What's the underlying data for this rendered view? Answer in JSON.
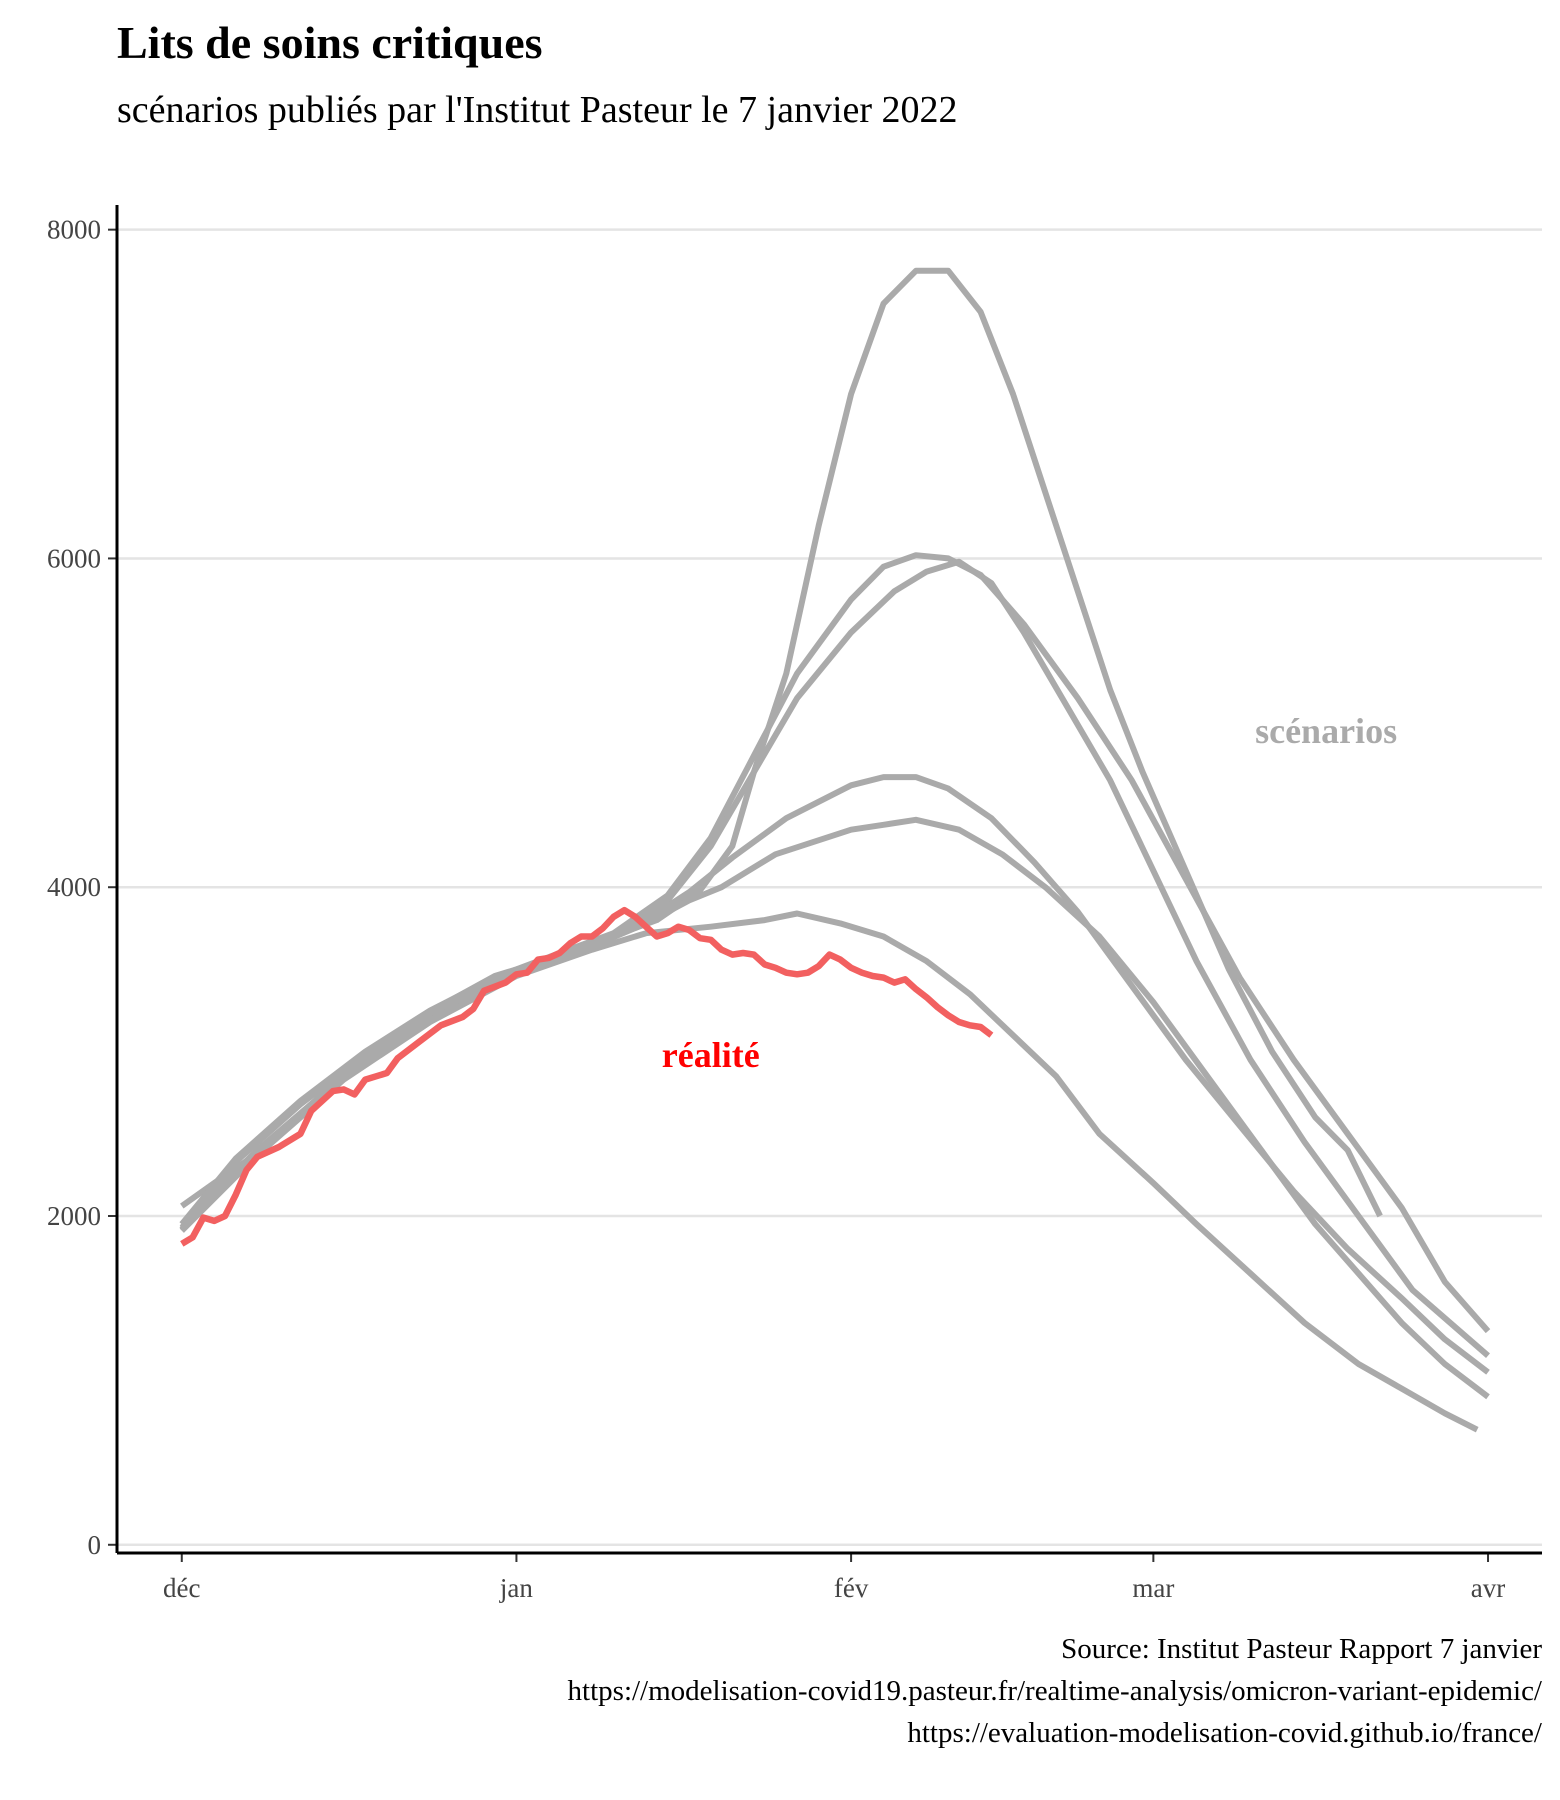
{
  "title": "Lits de soins critiques",
  "subtitle": "scénarios publiés par l'Institut Pasteur le 7 janvier 2022",
  "caption": [
    "Source: Institut Pasteur Rapport 7 janvier",
    "https://modelisation-covid19.pasteur.fr/realtime-analysis/omicron-variant-epidemic/",
    "https://evaluation-modelisation-covid.github.io/france/"
  ],
  "colors": {
    "scenario": "#aaaaaa",
    "reality": "#f26060",
    "reality_label": "#ff0000",
    "scenario_label": "#aaaaaa",
    "grid": "#e4e4e4"
  },
  "chart_data": {
    "type": "line",
    "title": "Lits de soins critiques",
    "subtitle": "scénarios publiés par l'Institut Pasteur le 7 janvier 2022",
    "xlabel": "",
    "ylabel": "",
    "x_ticks": [
      {
        "label": "déc",
        "date": "2021-12-01"
      },
      {
        "label": "jan",
        "date": "2022-01-01"
      },
      {
        "label": "fév",
        "date": "2022-02-01"
      },
      {
        "label": "mar",
        "date": "2022-03-01"
      },
      {
        "label": "avr",
        "date": "2022-04-01"
      }
    ],
    "xlim": [
      "2021-11-25",
      "2022-04-06"
    ],
    "y_ticks": [
      0,
      2000,
      4000,
      6000,
      8000
    ],
    "ylim": [
      -50,
      8150
    ],
    "grid": "horizontal",
    "annotations": [
      {
        "text": "scénarios",
        "date": "2022-03-17",
        "value": 4950,
        "color_key": "scenario_label"
      },
      {
        "text": "réalité",
        "date": "2022-01-19",
        "value": 2980,
        "color_key": "reality_label"
      }
    ],
    "series": [
      {
        "kind": "scenario",
        "points": [
          [
            "2021-12-01",
            2060
          ],
          [
            "2021-12-04",
            2200
          ],
          [
            "2021-12-08",
            2380
          ],
          [
            "2021-12-12",
            2620
          ],
          [
            "2021-12-16",
            2860
          ],
          [
            "2021-12-20",
            3060
          ],
          [
            "2021-12-25",
            3280
          ],
          [
            "2021-12-30",
            3460
          ],
          [
            "2022-01-04",
            3560
          ],
          [
            "2022-01-09",
            3680
          ],
          [
            "2022-01-14",
            3800
          ],
          [
            "2022-01-18",
            3980
          ],
          [
            "2022-01-21",
            4250
          ],
          [
            "2022-01-23",
            4700
          ],
          [
            "2022-01-26",
            5300
          ],
          [
            "2022-01-29",
            6200
          ],
          [
            "2022-02-01",
            7000
          ],
          [
            "2022-02-04",
            7550
          ],
          [
            "2022-02-07",
            7750
          ],
          [
            "2022-02-10",
            7750
          ],
          [
            "2022-02-13",
            7500
          ],
          [
            "2022-02-16",
            7000
          ],
          [
            "2022-02-19",
            6400
          ],
          [
            "2022-02-22",
            5800
          ],
          [
            "2022-02-25",
            5200
          ],
          [
            "2022-02-28",
            4700
          ],
          [
            "2022-03-04",
            4100
          ],
          [
            "2022-03-08",
            3500
          ],
          [
            "2022-03-12",
            3000
          ],
          [
            "2022-03-16",
            2600
          ],
          [
            "2022-03-19",
            2400
          ],
          [
            "2022-03-22",
            2000
          ]
        ]
      },
      {
        "kind": "scenario",
        "points": [
          [
            "2021-12-01",
            1950
          ],
          [
            "2021-12-06",
            2350
          ],
          [
            "2021-12-12",
            2700
          ],
          [
            "2021-12-18",
            3000
          ],
          [
            "2021-12-24",
            3250
          ],
          [
            "2021-12-30",
            3450
          ],
          [
            "2022-01-05",
            3600
          ],
          [
            "2022-01-10",
            3720
          ],
          [
            "2022-01-15",
            3950
          ],
          [
            "2022-01-19",
            4300
          ],
          [
            "2022-01-23",
            4800
          ],
          [
            "2022-01-27",
            5300
          ],
          [
            "2022-02-01",
            5750
          ],
          [
            "2022-02-04",
            5950
          ],
          [
            "2022-02-07",
            6020
          ],
          [
            "2022-02-10",
            6000
          ],
          [
            "2022-02-13",
            5900
          ],
          [
            "2022-02-17",
            5600
          ],
          [
            "2022-02-22",
            5150
          ],
          [
            "2022-02-27",
            4650
          ],
          [
            "2022-03-04",
            4050
          ],
          [
            "2022-03-09",
            3450
          ],
          [
            "2022-03-14",
            2950
          ],
          [
            "2022-03-19",
            2500
          ],
          [
            "2022-03-24",
            2050
          ],
          [
            "2022-03-28",
            1600
          ],
          [
            "2022-04-01",
            1300
          ]
        ]
      },
      {
        "kind": "scenario",
        "points": [
          [
            "2021-12-01",
            1920
          ],
          [
            "2021-12-06",
            2330
          ],
          [
            "2021-12-12",
            2680
          ],
          [
            "2021-12-18",
            2980
          ],
          [
            "2021-12-24",
            3230
          ],
          [
            "2021-12-30",
            3440
          ],
          [
            "2022-01-05",
            3590
          ],
          [
            "2022-01-10",
            3710
          ],
          [
            "2022-01-15",
            3920
          ],
          [
            "2022-01-19",
            4250
          ],
          [
            "2022-01-23",
            4700
          ],
          [
            "2022-01-27",
            5150
          ],
          [
            "2022-02-01",
            5550
          ],
          [
            "2022-02-05",
            5800
          ],
          [
            "2022-02-08",
            5920
          ],
          [
            "2022-02-11",
            5980
          ],
          [
            "2022-02-14",
            5850
          ],
          [
            "2022-02-17",
            5550
          ],
          [
            "2022-02-21",
            5100
          ],
          [
            "2022-02-25",
            4650
          ],
          [
            "2022-03-01",
            4100
          ],
          [
            "2022-03-05",
            3550
          ],
          [
            "2022-03-10",
            2950
          ],
          [
            "2022-03-15",
            2450
          ],
          [
            "2022-03-20",
            2000
          ],
          [
            "2022-03-25",
            1550
          ],
          [
            "2022-04-01",
            1150
          ]
        ]
      },
      {
        "kind": "scenario",
        "points": [
          [
            "2021-12-01",
            1950
          ],
          [
            "2021-12-08",
            2400
          ],
          [
            "2021-12-16",
            2850
          ],
          [
            "2021-12-24",
            3200
          ],
          [
            "2022-01-01",
            3480
          ],
          [
            "2022-01-08",
            3650
          ],
          [
            "2022-01-13",
            3800
          ],
          [
            "2022-01-17",
            3970
          ],
          [
            "2022-01-21",
            4180
          ],
          [
            "2022-01-26",
            4420
          ],
          [
            "2022-02-01",
            4620
          ],
          [
            "2022-02-04",
            4670
          ],
          [
            "2022-02-07",
            4670
          ],
          [
            "2022-02-10",
            4600
          ],
          [
            "2022-02-14",
            4420
          ],
          [
            "2022-02-18",
            4150
          ],
          [
            "2022-02-22",
            3850
          ],
          [
            "2022-02-27",
            3400
          ],
          [
            "2022-03-04",
            2950
          ],
          [
            "2022-03-09",
            2550
          ],
          [
            "2022-03-14",
            2150
          ],
          [
            "2022-03-19",
            1800
          ],
          [
            "2022-03-24",
            1500
          ],
          [
            "2022-03-28",
            1250
          ],
          [
            "2022-04-01",
            1050
          ]
        ]
      },
      {
        "kind": "scenario",
        "points": [
          [
            "2021-12-01",
            1930
          ],
          [
            "2021-12-08",
            2390
          ],
          [
            "2021-12-16",
            2840
          ],
          [
            "2021-12-24",
            3190
          ],
          [
            "2022-01-01",
            3470
          ],
          [
            "2022-01-08",
            3640
          ],
          [
            "2022-01-13",
            3780
          ],
          [
            "2022-01-17",
            3920
          ],
          [
            "2022-01-20",
            4000
          ],
          [
            "2022-01-25",
            4200
          ],
          [
            "2022-02-01",
            4350
          ],
          [
            "2022-02-04",
            4380
          ],
          [
            "2022-02-07",
            4410
          ],
          [
            "2022-02-11",
            4350
          ],
          [
            "2022-02-15",
            4200
          ],
          [
            "2022-02-19",
            4000
          ],
          [
            "2022-02-24",
            3700
          ],
          [
            "2022-03-01",
            3300
          ],
          [
            "2022-03-06",
            2850
          ],
          [
            "2022-03-11",
            2400
          ],
          [
            "2022-03-16",
            1950
          ],
          [
            "2022-03-20",
            1650
          ],
          [
            "2022-03-24",
            1350
          ],
          [
            "2022-03-28",
            1100
          ],
          [
            "2022-04-01",
            900
          ]
        ]
      },
      {
        "kind": "scenario",
        "points": [
          [
            "2021-12-01",
            1910
          ],
          [
            "2021-12-08",
            2370
          ],
          [
            "2021-12-16",
            2830
          ],
          [
            "2021-12-24",
            3180
          ],
          [
            "2022-01-01",
            3460
          ],
          [
            "2022-01-08",
            3620
          ],
          [
            "2022-01-13",
            3720
          ],
          [
            "2022-01-19",
            3760
          ],
          [
            "2022-01-24",
            3800
          ],
          [
            "2022-01-27",
            3840
          ],
          [
            "2022-01-31",
            3780
          ],
          [
            "2022-02-04",
            3700
          ],
          [
            "2022-02-08",
            3550
          ],
          [
            "2022-02-12",
            3350
          ],
          [
            "2022-02-16",
            3100
          ],
          [
            "2022-02-20",
            2850
          ],
          [
            "2022-02-24",
            2500
          ],
          [
            "2022-03-01",
            2200
          ],
          [
            "2022-03-05",
            1950
          ],
          [
            "2022-03-10",
            1650
          ],
          [
            "2022-03-15",
            1350
          ],
          [
            "2022-03-20",
            1100
          ],
          [
            "2022-03-24",
            950
          ],
          [
            "2022-03-28",
            800
          ],
          [
            "2022-03-31",
            700
          ]
        ]
      },
      {
        "kind": "reality",
        "points": [
          [
            "2021-12-01",
            1830
          ],
          [
            "2021-12-02",
            1870
          ],
          [
            "2021-12-03",
            1990
          ],
          [
            "2021-12-04",
            1970
          ],
          [
            "2021-12-05",
            2000
          ],
          [
            "2021-12-06",
            2130
          ],
          [
            "2021-12-07",
            2280
          ],
          [
            "2021-12-08",
            2360
          ],
          [
            "2021-12-10",
            2420
          ],
          [
            "2021-12-12",
            2500
          ],
          [
            "2021-12-13",
            2640
          ],
          [
            "2021-12-15",
            2760
          ],
          [
            "2021-12-16",
            2770
          ],
          [
            "2021-12-17",
            2740
          ],
          [
            "2021-12-18",
            2830
          ],
          [
            "2021-12-19",
            2850
          ],
          [
            "2021-12-20",
            2870
          ],
          [
            "2021-12-21",
            2960
          ],
          [
            "2021-12-23",
            3060
          ],
          [
            "2021-12-25",
            3160
          ],
          [
            "2021-12-27",
            3210
          ],
          [
            "2021-12-28",
            3260
          ],
          [
            "2021-12-29",
            3370
          ],
          [
            "2021-12-31",
            3420
          ],
          [
            "2022-01-01",
            3470
          ],
          [
            "2022-01-02",
            3480
          ],
          [
            "2022-01-03",
            3560
          ],
          [
            "2022-01-04",
            3570
          ],
          [
            "2022-01-05",
            3600
          ],
          [
            "2022-01-06",
            3660
          ],
          [
            "2022-01-07",
            3700
          ],
          [
            "2022-01-08",
            3700
          ],
          [
            "2022-01-09",
            3750
          ],
          [
            "2022-01-10",
            3820
          ],
          [
            "2022-01-11",
            3860
          ],
          [
            "2022-01-12",
            3820
          ],
          [
            "2022-01-13",
            3760
          ],
          [
            "2022-01-14",
            3700
          ],
          [
            "2022-01-15",
            3720
          ],
          [
            "2022-01-16",
            3760
          ],
          [
            "2022-01-17",
            3740
          ],
          [
            "2022-01-18",
            3690
          ],
          [
            "2022-01-19",
            3680
          ],
          [
            "2022-01-20",
            3620
          ],
          [
            "2022-01-21",
            3590
          ],
          [
            "2022-01-22",
            3600
          ],
          [
            "2022-01-23",
            3590
          ],
          [
            "2022-01-24",
            3530
          ],
          [
            "2022-01-25",
            3510
          ],
          [
            "2022-01-26",
            3480
          ],
          [
            "2022-01-27",
            3470
          ],
          [
            "2022-01-28",
            3480
          ],
          [
            "2022-01-29",
            3520
          ],
          [
            "2022-01-30",
            3590
          ],
          [
            "2022-01-31",
            3560
          ],
          [
            "2022-02-01",
            3510
          ],
          [
            "2022-02-02",
            3480
          ],
          [
            "2022-02-03",
            3460
          ],
          [
            "2022-02-04",
            3450
          ],
          [
            "2022-02-05",
            3420
          ],
          [
            "2022-02-06",
            3440
          ],
          [
            "2022-02-07",
            3380
          ],
          [
            "2022-02-08",
            3330
          ],
          [
            "2022-02-09",
            3270
          ],
          [
            "2022-02-10",
            3220
          ],
          [
            "2022-02-11",
            3180
          ],
          [
            "2022-02-12",
            3160
          ],
          [
            "2022-02-13",
            3150
          ],
          [
            "2022-02-14",
            3100
          ]
        ]
      }
    ]
  }
}
